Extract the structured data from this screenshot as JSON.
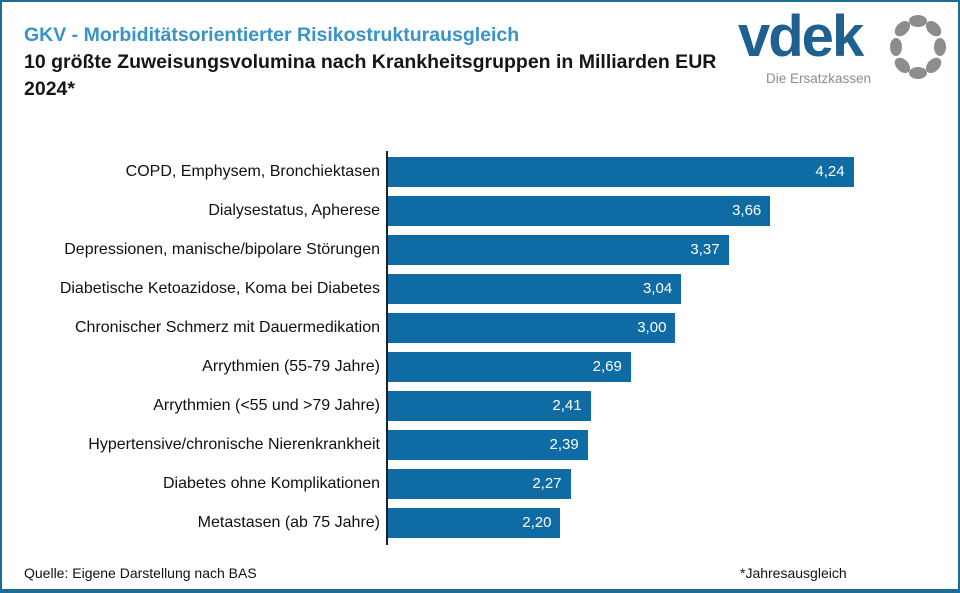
{
  "page": {
    "background": "#ffffff",
    "frame_color": "#1d6c93"
  },
  "header": {
    "title": "GKV - Morbiditätsorientierter Risikostrukturausgleich",
    "title_color": "#3893c6",
    "subtitle_line1": "10 größte Zuweisungsvolumina nach Krankheitsgruppen in Milliarden EUR",
    "subtitle_line2": "2024*"
  },
  "logo": {
    "wordmark": "vdek",
    "wordmark_color": "#1e608f",
    "tagline": "Die Ersatzkassen",
    "tagline_color": "#8d8d8d",
    "ring_icon_color": "#8d8d8d"
  },
  "chart_data": {
    "type": "bar",
    "orientation": "horizontal",
    "title": "GKV - Morbiditätsorientierter Risikostrukturausgleich",
    "subtitle": "10 größte Zuweisungsvolumina nach Krankheitsgruppen in Milliarden EUR 2024*",
    "unit": "Milliarden EUR",
    "categories": [
      "COPD, Emphysem, Bronchiektasen",
      "Dialysestatus, Apherese",
      "Depressionen, manische/bipolare Störungen",
      "Diabetische Ketoazidose, Koma bei Diabetes",
      "Chronischer Schmerz mit Dauermedikation",
      "Arrythmien (55-79 Jahre)",
      "Arrythmien (<55 und >79 Jahre)",
      "Hypertensive/chronische Nierenkrankheit",
      "Diabetes ohne Komplikationen",
      "Metastasen (ab 75 Jahre)"
    ],
    "values": [
      4.24,
      3.66,
      3.37,
      3.04,
      3.0,
      2.69,
      2.41,
      2.39,
      2.27,
      2.2
    ],
    "value_labels": [
      "4,24",
      "3,66",
      "3,37",
      "3,04",
      "3,00",
      "2,69",
      "2,41",
      "2,39",
      "2,27",
      "2,20"
    ],
    "xlim": [
      1.0,
      4.5
    ],
    "bar_color": "#0f6ba3",
    "value_label_color": "#ffffff",
    "grid": false,
    "legend": false
  },
  "footer": {
    "source": "Quelle: Eigene Darstellung nach BAS",
    "footnote": "*Jahresausgleich"
  }
}
